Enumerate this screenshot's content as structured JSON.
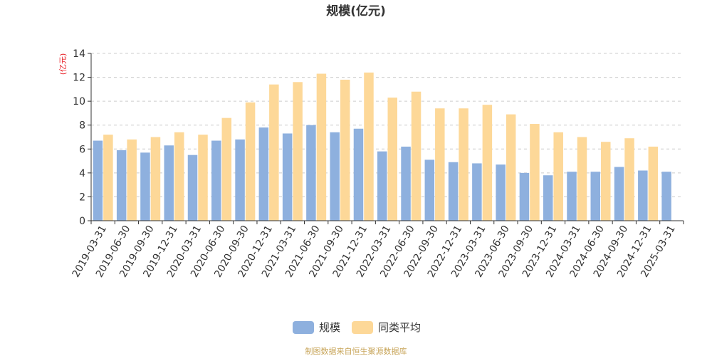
{
  "chart_data": {
    "type": "bar",
    "title": "规模(亿元)",
    "ylabel": "(亿元)",
    "xlabel": "",
    "ylim": [
      0,
      14
    ],
    "yticks": [
      0,
      2,
      4,
      6,
      8,
      10,
      12,
      14
    ],
    "grid": true,
    "legend_position": "bottom",
    "categories": [
      "2019-03-31",
      "2019-06-30",
      "2019-09-30",
      "2019-12-31",
      "2020-03-31",
      "2020-06-30",
      "2020-09-30",
      "2020-12-31",
      "2021-03-31",
      "2021-06-30",
      "2021-09-30",
      "2021-12-31",
      "2022-03-31",
      "2022-06-30",
      "2022-09-30",
      "2022-12-31",
      "2023-03-31",
      "2023-06-30",
      "2023-09-30",
      "2023-12-31",
      "2024-03-31",
      "2024-06-30",
      "2024-09-30",
      "2024-12-31",
      "2025-03-31"
    ],
    "series": [
      {
        "name": "规模",
        "color": "#8eb0de",
        "values": [
          6.7,
          5.9,
          5.7,
          6.3,
          5.5,
          6.7,
          6.8,
          7.8,
          7.3,
          8.0,
          7.4,
          7.7,
          5.8,
          6.2,
          5.1,
          4.9,
          4.8,
          4.7,
          4.0,
          3.8,
          4.1,
          4.1,
          4.5,
          4.2,
          4.1
        ]
      },
      {
        "name": "同类平均",
        "color": "#fdd898",
        "values": [
          7.2,
          6.8,
          7.0,
          7.4,
          7.2,
          8.6,
          9.9,
          11.4,
          11.6,
          12.3,
          11.8,
          12.4,
          10.3,
          10.8,
          9.4,
          9.4,
          9.7,
          8.9,
          8.1,
          7.4,
          7.0,
          6.6,
          6.9,
          6.2,
          null
        ]
      }
    ]
  },
  "footer": {
    "source": "制图数据来自恒生聚源数据库"
  }
}
